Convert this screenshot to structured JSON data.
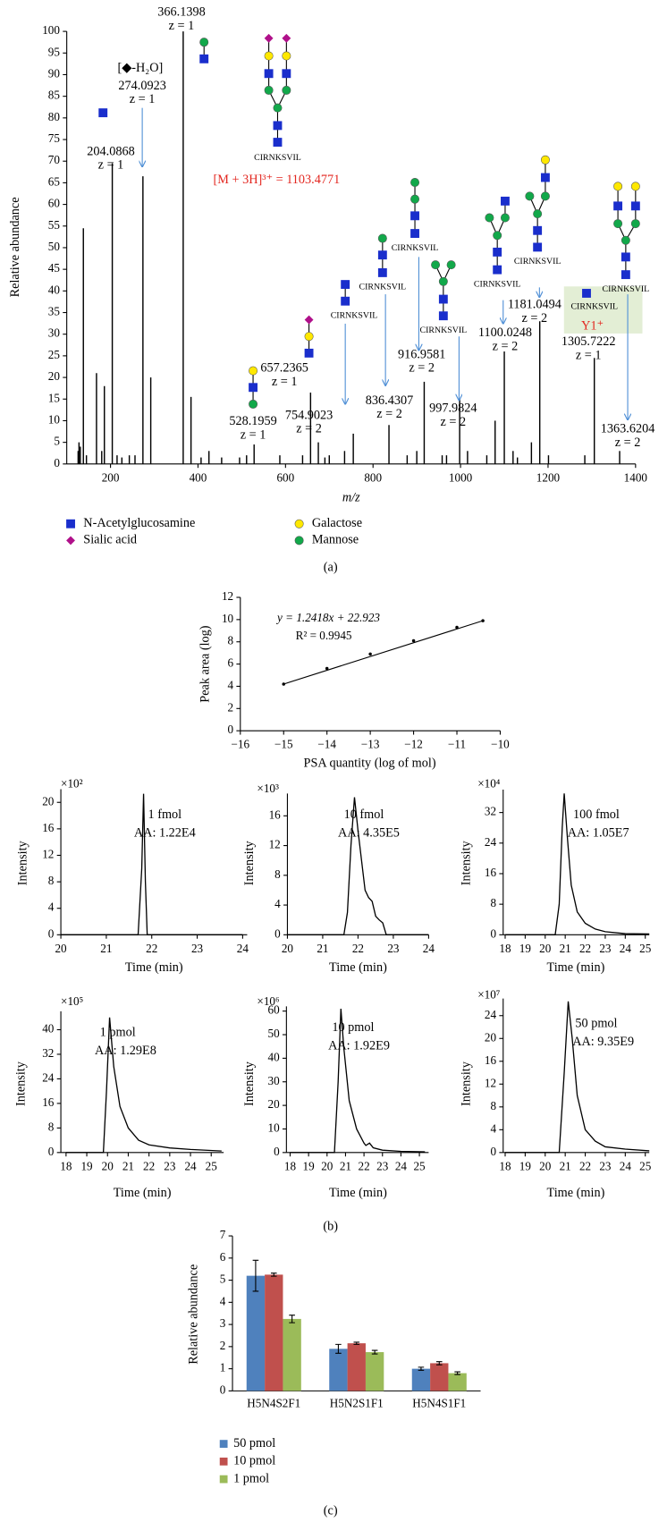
{
  "captions": [
    "(a)",
    "(b)",
    "(c)"
  ],
  "chart_data": [
    {
      "type": "stem",
      "x": [
        126,
        128,
        131,
        138,
        145,
        168,
        180,
        186,
        204.0868,
        215,
        226,
        243,
        256,
        274.0923,
        292,
        366.1398,
        384,
        407,
        425,
        454,
        495,
        511,
        528.1959,
        587,
        639,
        657.2365,
        675,
        690,
        700,
        735,
        754.9023,
        836.4307,
        878,
        900,
        916.9581,
        958,
        968,
        997.9824,
        1016,
        1060,
        1079,
        1100.0248,
        1120,
        1130,
        1162,
        1181.0494,
        1201,
        1284,
        1305.7222,
        1363.6204
      ],
      "values": [
        3,
        5,
        4,
        54.5,
        2,
        21,
        3,
        18,
        69.5,
        2,
        1.5,
        2,
        2,
        66.5,
        20,
        100,
        15.5,
        1.5,
        3,
        1.5,
        1.5,
        2,
        4.5,
        2,
        2,
        16.5,
        5,
        1.5,
        2,
        3,
        7,
        9,
        2,
        3,
        19,
        2,
        2,
        15,
        3,
        2,
        10,
        26,
        3,
        1.5,
        5,
        33,
        2,
        2,
        24.5,
        3
      ],
      "charge_labels": [
        null,
        null,
        null,
        null,
        null,
        null,
        null,
        null,
        "z = 1",
        null,
        null,
        null,
        null,
        "z = 1",
        null,
        "z = 1",
        null,
        null,
        null,
        null,
        null,
        null,
        "z = 1",
        null,
        null,
        "z = 1",
        null,
        null,
        null,
        null,
        "z = 2",
        "z = 2",
        null,
        null,
        "z = 2",
        null,
        null,
        "z = 2",
        null,
        null,
        null,
        "z = 2",
        null,
        null,
        null,
        "z = 2",
        null,
        null,
        "z = 1",
        "z = 2"
      ],
      "color": "#000000",
      "xlim": [
        100,
        1400
      ],
      "ylim": [
        0,
        100
      ],
      "xticks": [
        200,
        400,
        600,
        800,
        1000,
        1200,
        1400
      ],
      "yticks": [
        0,
        5,
        10,
        15,
        20,
        25,
        30,
        35,
        40,
        45,
        50,
        55,
        60,
        65,
        70,
        75,
        80,
        85,
        90,
        95,
        100
      ],
      "x_label": "m/z",
      "y_label": "Relative abundance",
      "precursor_label": "[M + 3H]³⁺ = 1103.4771",
      "water_loss_label": "[◆-H₂O]",
      "fragment_label": "Y1⁺",
      "peptide_label": "CIRNKSVIL",
      "highlight_color": "#e3261f",
      "arrow_color": "#4f8fd6",
      "symbol_legend": [
        {
          "name": "N-Acetylglucosamine",
          "color": "#1a2ecc",
          "shape": "square"
        },
        {
          "name": "Sialic acid",
          "color": "#b0108a",
          "shape": "diamond"
        },
        {
          "name": "Galactose",
          "color": "#ffe800",
          "shape": "circle"
        },
        {
          "name": "Mannose",
          "color": "#12a84a",
          "shape": "circle"
        }
      ]
    },
    {
      "type": "scatter",
      "x": [
        -15,
        -14,
        -13,
        -12,
        -11,
        -10.4
      ],
      "values": [
        4.2,
        5.6,
        6.9,
        8.1,
        9.3,
        9.9
      ],
      "color": "#000000",
      "xlim": [
        -16,
        -10
      ],
      "ylim": [
        0,
        12
      ],
      "xticks": [
        {
          "value": -16,
          "label": "−16"
        },
        {
          "value": -15,
          "label": "−15"
        },
        {
          "value": -14,
          "label": "−14"
        },
        {
          "value": -13,
          "label": "−13"
        },
        {
          "value": -12,
          "label": "−12"
        },
        {
          "value": -11,
          "label": "−11"
        },
        {
          "value": -10,
          "label": "−10"
        }
      ],
      "yticks": [
        0,
        2,
        4,
        6,
        8,
        10,
        12
      ],
      "x_label": "PSA quantity (log of mol)",
      "y_label": "Peak area (log)",
      "equation": "y = 1.2418x + 22.923",
      "r_squared": "R² = 0.9945"
    },
    {
      "type": "line",
      "x": [
        20,
        21.7,
        21.78,
        21.82,
        21.86,
        21.9,
        24
      ],
      "values": [
        0,
        0,
        10,
        21.3,
        8,
        0,
        0
      ],
      "color": "#000000",
      "xlim": [
        20,
        24.1
      ],
      "ylim": [
        0,
        22
      ],
      "xticks": [
        20,
        21,
        22,
        23,
        24
      ],
      "yticks": [
        0,
        4,
        8,
        12,
        16,
        20
      ],
      "x_label": "Time (min)",
      "y_label": "Intensity",
      "scale_label": "×10²",
      "annotations": [
        "1 fmol",
        "AA: 1.22E4"
      ]
    },
    {
      "type": "line",
      "x": [
        20,
        21.6,
        21.7,
        21.8,
        21.9,
        22,
        22.1,
        22.2,
        22.3,
        22.4,
        22.5,
        22.6,
        22.7,
        22.8,
        24
      ],
      "values": [
        0,
        0,
        3,
        12,
        18.5,
        14,
        10,
        6,
        5,
        4.5,
        2.5,
        2,
        1.6,
        0,
        0
      ],
      "color": "#000000",
      "xlim": [
        20,
        24
      ],
      "ylim": [
        0,
        19
      ],
      "xticks": [
        20,
        21,
        22,
        23,
        24
      ],
      "yticks": [
        0,
        4,
        8,
        12,
        16
      ],
      "x_label": "Time (min)",
      "y_label": "Intensity",
      "scale_label": "×10³",
      "annotations": [
        "10 fmol",
        "AA: 4.35E5"
      ]
    },
    {
      "type": "line",
      "x": [
        18,
        20.5,
        20.7,
        20.85,
        20.95,
        21.1,
        21.3,
        21.6,
        22,
        22.5,
        23,
        24,
        25.2
      ],
      "values": [
        0,
        0,
        8,
        28,
        37,
        26,
        13,
        6,
        3,
        1.5,
        0.8,
        0.3,
        0.2
      ],
      "color": "#000000",
      "xlim": [
        17.9,
        25.2
      ],
      "ylim": [
        0,
        38
      ],
      "xticks": [
        18,
        19,
        20,
        21,
        22,
        23,
        24,
        25
      ],
      "yticks": [
        0,
        8,
        16,
        24,
        32
      ],
      "x_label": "Time (min)",
      "y_label": "Intensity",
      "scale_label": "×10⁴",
      "annotations": [
        "100 fmol",
        "AA: 1.05E7"
      ]
    },
    {
      "type": "line",
      "x": [
        18,
        19.8,
        19.95,
        20.1,
        20.3,
        20.6,
        21,
        21.5,
        22,
        23,
        24,
        25.5
      ],
      "values": [
        0,
        0,
        20,
        44,
        28,
        15,
        8,
        4,
        2.5,
        1.5,
        1,
        0.5
      ],
      "color": "#000000",
      "xlim": [
        17.75,
        25.6
      ],
      "ylim": [
        0,
        46
      ],
      "xticks": [
        18,
        19,
        20,
        21,
        22,
        23,
        24,
        25
      ],
      "yticks": [
        0,
        8,
        16,
        24,
        32,
        40
      ],
      "x_label": "Time (min)",
      "y_label": "Intensity",
      "scale_label": "×10⁵",
      "annotations": [
        "1 pmol",
        "AA: 1.29E8"
      ]
    },
    {
      "type": "line",
      "x": [
        18,
        20.4,
        20.6,
        20.75,
        20.9,
        21.2,
        21.6,
        22,
        22.1,
        22.3,
        22.5,
        23,
        24,
        25.3
      ],
      "values": [
        0,
        0,
        30,
        61,
        45,
        22,
        10,
        4,
        3,
        4,
        2,
        1,
        0.5,
        0.3
      ],
      "color": "#000000",
      "xlim": [
        17.8,
        25.5
      ],
      "ylim": [
        0,
        62
      ],
      "xticks": [
        18,
        19,
        20,
        21,
        22,
        23,
        24,
        25
      ],
      "yticks": [
        0,
        10,
        20,
        30,
        40,
        50,
        60
      ],
      "x_label": "Time (min)",
      "y_label": "Intensity",
      "scale_label": "×10⁶",
      "annotations": [
        "10 pmol",
        "AA: 1.92E9"
      ]
    },
    {
      "type": "line",
      "x": [
        18,
        20.7,
        20.95,
        21.15,
        21.35,
        21.6,
        22,
        22.5,
        23,
        24,
        25.2
      ],
      "values": [
        0,
        0,
        14,
        26.5,
        20,
        10,
        4,
        2,
        1,
        0.6,
        0.3
      ],
      "color": "#000000",
      "xlim": [
        17.9,
        25.2
      ],
      "ylim": [
        0,
        27
      ],
      "xticks": [
        18,
        19,
        20,
        21,
        22,
        23,
        24,
        25
      ],
      "yticks": [
        0,
        4,
        8,
        12,
        16,
        20,
        24
      ],
      "x_label": "Time (min)",
      "y_label": "Intensity",
      "scale_label": "×10⁷",
      "annotations": [
        "50 pmol",
        "AA: 9.35E9"
      ]
    },
    {
      "type": "bar",
      "categories": [
        "H5N4S2F1",
        "H5N2S1F1",
        "H5N4S1F1"
      ],
      "series": [
        {
          "name": "50 pmol",
          "color": "#4f81bd",
          "values": [
            5.2,
            1.9,
            1.0
          ],
          "errors": [
            0.7,
            0.2,
            0.07
          ]
        },
        {
          "name": "10 pmol",
          "color": "#c0504d",
          "values": [
            5.25,
            2.15,
            1.25
          ],
          "errors": [
            0.07,
            0.05,
            0.07
          ]
        },
        {
          "name": "1 pmol",
          "color": "#9bbb59",
          "values": [
            3.25,
            1.75,
            0.8
          ],
          "errors": [
            0.17,
            0.08,
            0.06
          ]
        }
      ],
      "ylim": [
        0,
        7
      ],
      "yticks": [
        0,
        1,
        2,
        3,
        4,
        5,
        6,
        7
      ],
      "y_label": "Relative abundance"
    }
  ]
}
